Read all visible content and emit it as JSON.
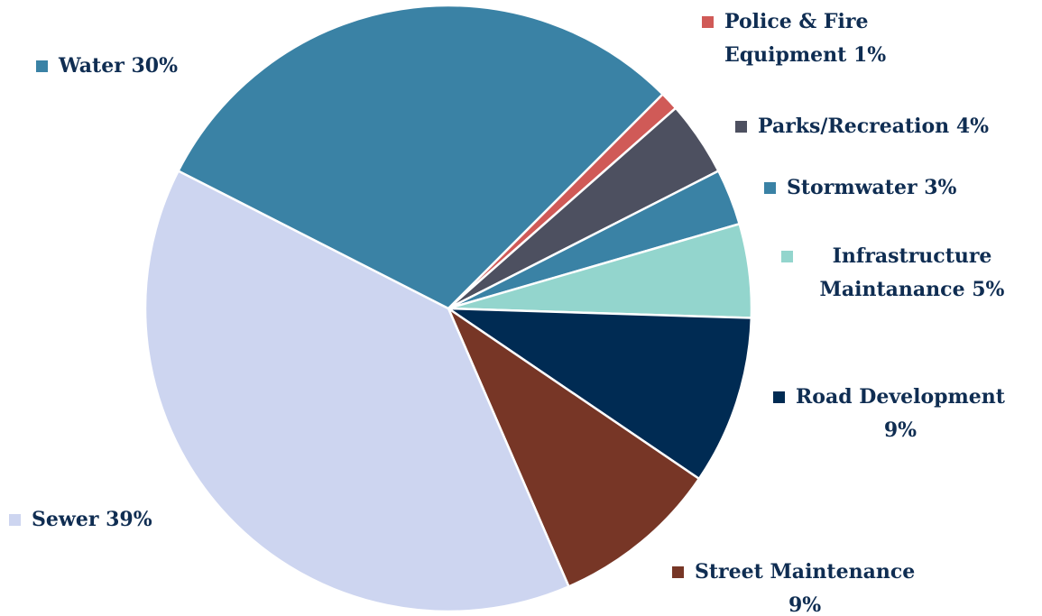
{
  "chart_data": {
    "type": "pie",
    "categories": [
      "Police & Fire Equipment",
      "Parks/Recreation",
      "Stormwater",
      "Infrastructure Maintanance",
      "Road Development",
      "Street Maintenance",
      "Sewer",
      "Water"
    ],
    "values": [
      1,
      4,
      3,
      5,
      9,
      9,
      39,
      30
    ],
    "value_labels": [
      "1%",
      "4%",
      "3%",
      "5%",
      "9%",
      "9%",
      "39%",
      "30%"
    ],
    "colors": [
      "#d05a57",
      "#4d5060",
      "#3a82a5",
      "#93d5cd",
      "#002b53",
      "#773626",
      "#cdd5f0",
      "#3a82a5"
    ]
  }
}
